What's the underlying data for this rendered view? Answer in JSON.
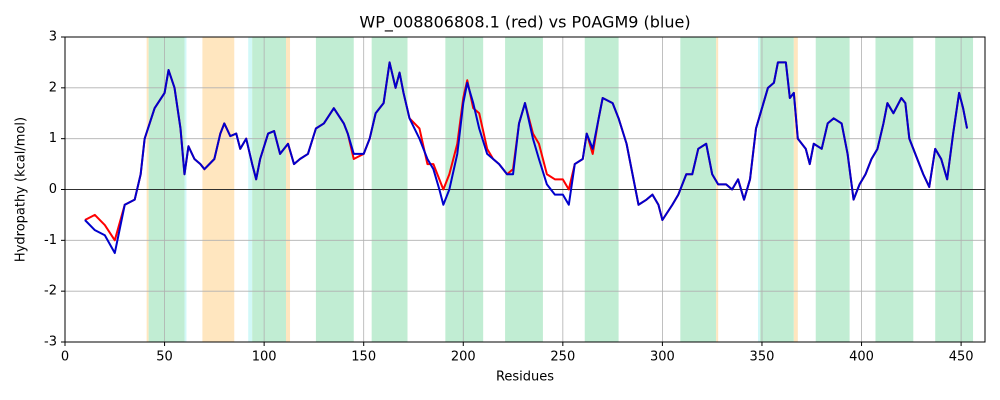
{
  "chart_data": {
    "type": "line",
    "title": "WP_008806808.1 (red) vs P0AGM9 (blue)",
    "xlabel": "Residues",
    "ylabel": "Hydropathy (kcal/mol)",
    "xlim": [
      0,
      462
    ],
    "ylim": [
      -3,
      3
    ],
    "xticks": [
      0,
      50,
      100,
      150,
      200,
      250,
      300,
      350,
      400,
      450
    ],
    "yticks": [
      -3,
      -2,
      -1,
      0,
      1,
      2,
      3
    ],
    "grid": true,
    "hline": 0,
    "regions": [
      {
        "start": 41,
        "end": 42,
        "color": "#ffe6bf"
      },
      {
        "start": 42,
        "end": 60,
        "color": "#c1edd3"
      },
      {
        "start": 60,
        "end": 61,
        "color": "#d2f8f8"
      },
      {
        "start": 69,
        "end": 85,
        "color": "#ffe6bf"
      },
      {
        "start": 92,
        "end": 94,
        "color": "#d2f8f8"
      },
      {
        "start": 94,
        "end": 111,
        "color": "#c1edd3"
      },
      {
        "start": 111,
        "end": 113,
        "color": "#ffe6bf"
      },
      {
        "start": 126,
        "end": 145,
        "color": "#c1edd3"
      },
      {
        "start": 154,
        "end": 172,
        "color": "#c1edd3"
      },
      {
        "start": 191,
        "end": 210,
        "color": "#c1edd3"
      },
      {
        "start": 221,
        "end": 240,
        "color": "#c1edd3"
      },
      {
        "start": 261,
        "end": 278,
        "color": "#c1edd3"
      },
      {
        "start": 309,
        "end": 327,
        "color": "#c1edd3"
      },
      {
        "start": 327,
        "end": 328,
        "color": "#ffe6bf"
      },
      {
        "start": 348,
        "end": 349,
        "color": "#d2f8f8"
      },
      {
        "start": 349,
        "end": 366,
        "color": "#c1edd3"
      },
      {
        "start": 366,
        "end": 368,
        "color": "#ffe6bf"
      },
      {
        "start": 377,
        "end": 394,
        "color": "#c1edd3"
      },
      {
        "start": 407,
        "end": 426,
        "color": "#c1edd3"
      },
      {
        "start": 437,
        "end": 456,
        "color": "#c1edd3"
      }
    ],
    "x": [
      10,
      15,
      20,
      25,
      30,
      35,
      38,
      40,
      45,
      50,
      52,
      55,
      58,
      60,
      62,
      65,
      68,
      70,
      75,
      78,
      80,
      83,
      86,
      88,
      91,
      94,
      96,
      98,
      102,
      105,
      108,
      112,
      115,
      118,
      122,
      126,
      130,
      135,
      140,
      142,
      145,
      150,
      153,
      156,
      160,
      163,
      166,
      168,
      170,
      173,
      178,
      182,
      185,
      188,
      190,
      193,
      197,
      200,
      202,
      205,
      208,
      212,
      215,
      218,
      222,
      225,
      228,
      231,
      235,
      238,
      242,
      246,
      250,
      253,
      256,
      260,
      262,
      265,
      268,
      270,
      275,
      278,
      282,
      285,
      288,
      292,
      295,
      298,
      300,
      305,
      308,
      312,
      315,
      318,
      322,
      325,
      328,
      332,
      335,
      338,
      341,
      344,
      347,
      350,
      353,
      356,
      358,
      362,
      364,
      366,
      368,
      372,
      374,
      376,
      380,
      383,
      386,
      390,
      393,
      396,
      399,
      402,
      405,
      408,
      411,
      413,
      416,
      420,
      422,
      424,
      428,
      431,
      434,
      437,
      440,
      443,
      446,
      449,
      451,
      453
    ],
    "series": [
      {
        "name": "WP_008806808.1",
        "color": "#ff0000",
        "values": [
          -0.6,
          -0.5,
          -0.7,
          -1.0,
          -0.3,
          -0.2,
          0.3,
          1.0,
          1.6,
          1.9,
          2.35,
          2.0,
          1.2,
          0.3,
          0.85,
          0.6,
          0.5,
          0.4,
          0.6,
          1.1,
          1.3,
          1.05,
          1.1,
          0.8,
          1.0,
          0.5,
          0.2,
          0.6,
          1.1,
          1.15,
          0.7,
          0.9,
          0.5,
          0.6,
          0.7,
          1.2,
          1.3,
          1.6,
          1.3,
          1.1,
          0.6,
          0.7,
          1.0,
          1.5,
          1.7,
          2.5,
          2.0,
          2.3,
          1.9,
          1.4,
          1.2,
          0.5,
          0.5,
          0.2,
          0.0,
          0.3,
          0.9,
          1.8,
          2.15,
          1.6,
          1.5,
          0.8,
          0.6,
          0.5,
          0.3,
          0.4,
          1.3,
          1.7,
          1.1,
          0.9,
          0.3,
          0.2,
          0.2,
          0.0,
          0.5,
          0.6,
          1.1,
          0.7,
          1.4,
          1.8,
          1.7,
          1.4,
          0.9,
          0.3,
          -0.3,
          -0.2,
          -0.1,
          -0.3,
          -0.6,
          -0.3,
          -0.1,
          0.3,
          0.3,
          0.8,
          0.9,
          0.3,
          0.1,
          0.1,
          0.0,
          0.2,
          -0.2,
          0.2,
          1.2,
          1.6,
          2.0,
          2.1,
          2.5,
          2.5,
          1.8,
          1.9,
          1.0,
          0.8,
          0.5,
          0.9,
          0.8,
          1.3,
          1.4,
          1.3,
          0.7,
          -0.2,
          0.1,
          0.3,
          0.6,
          0.8,
          1.3,
          1.7,
          1.5,
          1.8,
          1.7,
          1.0,
          0.6,
          0.3,
          0.05,
          0.8,
          0.6,
          0.2,
          1.1,
          1.9,
          1.6,
          1.2
        ]
      },
      {
        "name": "P0AGM9",
        "color": "#0000cc",
        "values": [
          -0.6,
          -0.8,
          -0.9,
          -1.25,
          -0.3,
          -0.2,
          0.3,
          1.0,
          1.6,
          1.9,
          2.35,
          2.0,
          1.2,
          0.3,
          0.85,
          0.6,
          0.5,
          0.4,
          0.6,
          1.1,
          1.3,
          1.05,
          1.1,
          0.8,
          1.0,
          0.5,
          0.2,
          0.6,
          1.1,
          1.15,
          0.7,
          0.9,
          0.5,
          0.6,
          0.7,
          1.2,
          1.3,
          1.6,
          1.3,
          1.1,
          0.7,
          0.7,
          1.0,
          1.5,
          1.7,
          2.5,
          2.0,
          2.3,
          1.9,
          1.4,
          1.0,
          0.6,
          0.4,
          0.0,
          -0.3,
          0.0,
          0.7,
          1.7,
          2.1,
          1.7,
          1.2,
          0.7,
          0.6,
          0.5,
          0.3,
          0.3,
          1.3,
          1.7,
          1.0,
          0.6,
          0.1,
          -0.1,
          -0.1,
          -0.3,
          0.5,
          0.6,
          1.1,
          0.8,
          1.4,
          1.8,
          1.7,
          1.4,
          0.9,
          0.3,
          -0.3,
          -0.2,
          -0.1,
          -0.3,
          -0.6,
          -0.3,
          -0.1,
          0.3,
          0.3,
          0.8,
          0.9,
          0.3,
          0.1,
          0.1,
          0.0,
          0.2,
          -0.2,
          0.2,
          1.2,
          1.6,
          2.0,
          2.1,
          2.5,
          2.5,
          1.8,
          1.9,
          1.0,
          0.8,
          0.5,
          0.9,
          0.8,
          1.3,
          1.4,
          1.3,
          0.7,
          -0.2,
          0.1,
          0.3,
          0.6,
          0.8,
          1.3,
          1.7,
          1.5,
          1.8,
          1.7,
          1.0,
          0.6,
          0.3,
          0.05,
          0.8,
          0.6,
          0.2,
          1.1,
          1.9,
          1.6,
          1.2
        ]
      }
    ]
  }
}
